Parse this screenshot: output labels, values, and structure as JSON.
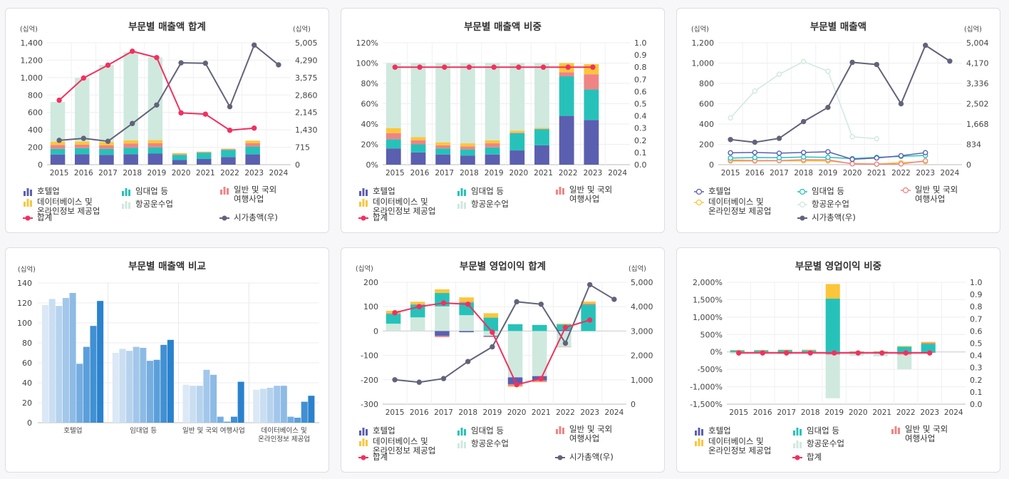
{
  "years": [
    "2015",
    "2016",
    "2017",
    "2018",
    "2019",
    "2020",
    "2021",
    "2022",
    "2023",
    "2024"
  ],
  "colors": {
    "hotel": "#5b5fb0",
    "rental": "#26c2ba",
    "travel": "#f08484",
    "data": "#fbc63b",
    "airline": "#cfe9de",
    "total": "#f2305e",
    "mcap": "#62637a"
  },
  "legend": {
    "hotel": "호텔업",
    "rental": "임대업 등",
    "travel_1": "일반 및 국외",
    "travel_2": "여행사업",
    "data_1": "데이터베이스 및",
    "data_2": "온라인정보 제공업",
    "airline": "항공운수업",
    "total": "합계",
    "mcap": "시가총액(우)"
  },
  "charts": [
    {
      "title": "부문별 매출액 합계",
      "unit_left": "(십억)",
      "unit_right": "(십억)",
      "chart_data": {
        "type": "bar",
        "categories": [
          "2015",
          "2016",
          "2017",
          "2018",
          "2019",
          "2020",
          "2021",
          "2022",
          "2023",
          "2024"
        ],
        "ylim": [
          0,
          1400
        ],
        "yticks": [
          "0",
          "200",
          "400",
          "600",
          "800",
          "1,000",
          "1,200",
          "1,400"
        ],
        "y2lim": [
          0,
          5005
        ],
        "y2ticks": [
          "0",
          "715",
          "1,430",
          "2,145",
          "2,860",
          "3,575",
          "4,290",
          "5,005"
        ],
        "series": [
          {
            "name": "호텔업",
            "stack": [
              117,
              120,
              113,
              120,
              127,
              53,
              66,
              88,
              118,
              null
            ]
          },
          {
            "name": "임대업 등",
            "stack": [
              65,
              70,
              68,
              75,
              72,
              60,
              72,
              82,
              90,
              null
            ]
          },
          {
            "name": "일반 및 국외 여행사업",
            "stack": [
              45,
              40,
              40,
              48,
              47,
              8,
              5,
              7,
              38,
              null
            ]
          },
          {
            "name": "데이터베이스 및 온라인정보 제공업",
            "stack": [
              35,
              35,
              38,
              37,
              36,
              12,
              6,
              7,
              30,
              null
            ]
          },
          {
            "name": "항공운수업",
            "stack": [
              458,
              730,
              886,
              1010,
              950,
              0,
              0,
              0,
              0,
              null
            ]
          },
          {
            "name": "합계",
            "line": [
              740,
              995,
              1143,
              1303,
              1230,
              595,
              580,
              395,
              420,
              null
            ]
          },
          {
            "name": "시가총액(우)",
            "line": [
              1000,
              1080,
              960,
              1690,
              2450,
              4180,
              4165,
              2380,
              4910,
              4100
            ]
          }
        ]
      }
    },
    {
      "title": "부문별 매출액 비중",
      "unit_left": "",
      "unit_right": "",
      "chart_data": {
        "type": "bar",
        "categories": [
          "2015",
          "2016",
          "2017",
          "2018",
          "2019",
          "2020",
          "2021",
          "2022",
          "2023",
          "2024"
        ],
        "ylim": [
          0,
          120
        ],
        "yticks": [
          "0%",
          "20%",
          "40%",
          "60%",
          "80%",
          "100%",
          "120%"
        ],
        "y2lim": [
          0,
          1.0
        ],
        "y2ticks": [
          "0.0",
          "0.1",
          "0.2",
          "0.3",
          "0.4",
          "0.5",
          "0.6",
          "0.7",
          "0.8",
          "0.9",
          "1.0"
        ],
        "series": [
          {
            "name": "호텔업",
            "stack": [
              16,
              12,
              10,
              9,
              10,
              14,
              19,
              48,
              44,
              null
            ]
          },
          {
            "name": "임대업 등",
            "stack": [
              9,
              8,
              6,
              6,
              7,
              17,
              16,
              39,
              30,
              null
            ]
          },
          {
            "name": "일반 및 국외 여행사업",
            "stack": [
              6,
              4,
              3,
              3,
              4,
              0.5,
              0.3,
              4,
              15,
              null
            ]
          },
          {
            "name": "데이터베이스 및 온라인정보 제공업",
            "stack": [
              5,
              3,
              3,
              3,
              3,
              2,
              1,
              9,
              10,
              null
            ]
          },
          {
            "name": "항공운수업",
            "stack": [
              64,
              73,
              78,
              79,
              76,
              66.5,
              63.7,
              0,
              0,
              null
            ]
          },
          {
            "name": "합계",
            "line": [
              0.8,
              0.8,
              0.8,
              0.8,
              0.8,
              0.8,
              0.8,
              0.8,
              0.8,
              null
            ]
          }
        ]
      }
    },
    {
      "title": "부문별 매출액",
      "unit_left": "(십억)",
      "unit_right": "(십억)",
      "chart_data": {
        "type": "line",
        "categories": [
          "2015",
          "2016",
          "2017",
          "2018",
          "2019",
          "2020",
          "2021",
          "2022",
          "2023",
          "2024"
        ],
        "ylim": [
          0,
          1200
        ],
        "yticks": [
          "0",
          "200",
          "400",
          "600",
          "800",
          "1,000",
          "1,200"
        ],
        "y2lim": [
          0,
          5004
        ],
        "y2ticks": [
          "0",
          "834",
          "1,668",
          "2,502",
          "3,336",
          "4,170",
          "5,004"
        ],
        "series": [
          {
            "name": "호텔업",
            "values": [
              117,
              120,
              113,
              120,
              127,
              53,
              66,
              88,
              118,
              null
            ]
          },
          {
            "name": "임대업 등",
            "values": [
              65,
              70,
              68,
              75,
              72,
              60,
              72,
              82,
              90,
              null
            ]
          },
          {
            "name": "일반 및 국외 여행사업",
            "values": [
              45,
              40,
              40,
              48,
              47,
              8,
              5,
              7,
              38,
              null
            ]
          },
          {
            "name": "데이터베이스 및 온라인정보 제공업",
            "values": [
              35,
              35,
              38,
              37,
              36,
              12,
              6,
              20,
              30,
              null
            ]
          },
          {
            "name": "항공운수업",
            "values": [
              460,
              725,
              890,
              1015,
              920,
              275,
              255,
              null,
              null,
              null
            ]
          },
          {
            "name": "시가총액(우)",
            "values": [
              1030,
              920,
              1080,
              1770,
              2350,
              4200,
              4110,
              2500,
              4900,
              4250
            ]
          }
        ]
      }
    },
    {
      "title": "부문별 매출액 비교",
      "unit_left": "(십억)",
      "unit_right": "",
      "chart_data": {
        "type": "bar",
        "categories": [
          "호텔업",
          "임대업 등",
          "일반 및 국외 여행사업",
          "데이터베이스 및 온라인정보 제공업"
        ],
        "ylim": [
          0,
          140
        ],
        "yticks": [
          "0",
          "20",
          "40",
          "60",
          "80",
          "100",
          "120",
          "140"
        ],
        "series_years": [
          "2015",
          "2016",
          "2017",
          "2018",
          "2019",
          "2020",
          "2021",
          "2022",
          "2023",
          "2024"
        ],
        "groups": [
          [
            118,
            124,
            117,
            125,
            130,
            59,
            76,
            97,
            122,
            null
          ],
          [
            70,
            74,
            72,
            76,
            75,
            62,
            63,
            78,
            83,
            null
          ],
          [
            38,
            37,
            37,
            53,
            48,
            6,
            1,
            6,
            41,
            null
          ],
          [
            33,
            34,
            35,
            37,
            37,
            6,
            5,
            21,
            27,
            null
          ]
        ]
      }
    },
    {
      "title": "부문별 영업이익 합계",
      "unit_left": "(십억)",
      "unit_right": "(십억)",
      "chart_data": {
        "type": "bar",
        "categories": [
          "2015",
          "2016",
          "2017",
          "2018",
          "2019",
          "2020",
          "2021",
          "2022",
          "2023",
          "2024"
        ],
        "ylim": [
          -300,
          200
        ],
        "yticks": [
          "-300",
          "-200",
          "-100",
          "0",
          "100",
          "200"
        ],
        "y2lim": [
          0,
          5000
        ],
        "y2ticks": [
          "0",
          "1,000",
          "2,000",
          "3,000",
          "4,000",
          "5,000"
        ],
        "series": [
          {
            "name": "호텔업",
            "stack": [
              0,
              0,
              -20,
              -5,
              -3,
              -28,
              -18,
              5,
              0,
              null
            ]
          },
          {
            "name": "임대업 등",
            "stack": [
              40,
              52,
              55,
              52,
              55,
              28,
              25,
              22,
              108,
              null
            ]
          },
          {
            "name": "일반 및 국외 여행사업",
            "stack": [
              3,
              2,
              -5,
              3,
              -2,
              -8,
              -5,
              -1,
              5,
              null
            ]
          },
          {
            "name": "데이터베이스 및 온라인정보 제공업",
            "stack": [
              10,
              10,
              15,
              18,
              18,
              -3,
              -2,
              3,
              8,
              null
            ]
          },
          {
            "name": "항공운수업",
            "stack": [
              30,
              56,
              101,
              65,
              -20,
              -190,
              -185,
              -65,
              0,
              null
            ]
          },
          {
            "name": "합계",
            "line": [
              3750,
              4000,
              4150,
              4100,
              2950,
              800,
              1050,
              3150,
              3450,
              null
            ]
          },
          {
            "name": "시가총액(우)",
            "line": [
              1000,
              900,
              1050,
              1750,
              2350,
              4200,
              4100,
              2500,
              4900,
              4300
            ]
          }
        ]
      }
    },
    {
      "title": "부문별 영업이익 비중",
      "unit_left": "",
      "unit_right": "",
      "chart_data": {
        "type": "bar",
        "categories": [
          "2015",
          "2016",
          "2017",
          "2018",
          "2019",
          "2020",
          "2021",
          "2022",
          "2023",
          "2024"
        ],
        "ylim": [
          -1500,
          2000
        ],
        "yticks": [
          "-1,500%",
          "-1,000%",
          "-500%",
          "0%",
          "500%",
          "1,000%",
          "1,500%",
          "2,000%"
        ],
        "y2lim": [
          0,
          1.0
        ],
        "y2ticks": [
          "0.0",
          "0.1",
          "0.2",
          "0.3",
          "0.4",
          "0.5",
          "0.6",
          "0.7",
          "0.8",
          "0.9",
          "1.0"
        ],
        "series": [
          {
            "name": "호텔업",
            "stack": [
              -10,
              -10,
              -20,
              -10,
              -60,
              -10,
              -10,
              -30,
              -20,
              null
            ]
          },
          {
            "name": "임대업 등",
            "stack": [
              40,
              40,
              50,
              45,
              1530,
              10,
              10,
              150,
              230,
              null
            ]
          },
          {
            "name": "일반 및 국외 여행사업",
            "stack": [
              5,
              5,
              5,
              5,
              -20,
              -20,
              -15,
              -50,
              30,
              null
            ]
          },
          {
            "name": "데이터베이스 및 온라인정보 제공업",
            "stack": [
              10,
              10,
              10,
              15,
              420,
              10,
              10,
              20,
              30,
              null
            ]
          },
          {
            "name": "항공운수업",
            "stack": [
              -40,
              -30,
              -40,
              -30,
              -1250,
              -80,
              -100,
              -420,
              0,
              null
            ]
          },
          {
            "name": "합계",
            "line": [
              0.42,
              0.42,
              0.42,
              0.42,
              0.42,
              0.42,
              0.42,
              0.42,
              0.42,
              null
            ]
          }
        ]
      }
    }
  ]
}
